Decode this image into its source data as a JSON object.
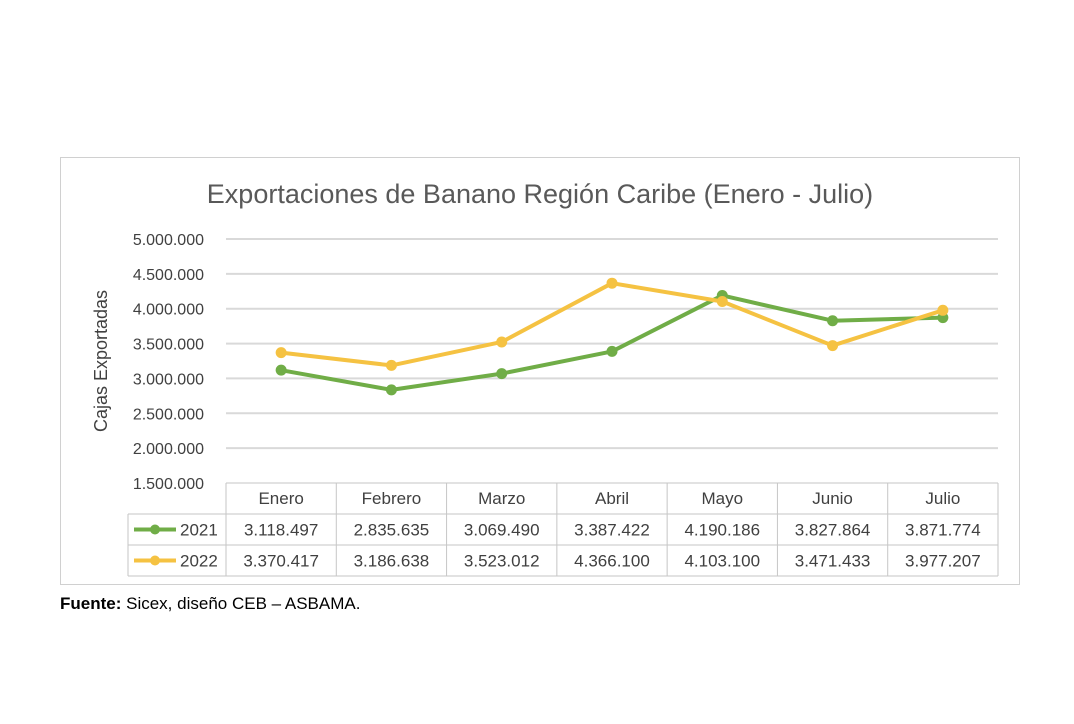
{
  "chart_data": {
    "type": "line",
    "title": "Exportaciones de Banano Región Caribe (Enero - Julio)",
    "ylabel": "Cajas Exportadas",
    "xlabel": "",
    "categories": [
      "Enero",
      "Febrero",
      "Marzo",
      "Abril",
      "Mayo",
      "Junio",
      "Julio"
    ],
    "ylim": [
      1500000,
      5000000
    ],
    "ytick_values": [
      5000000,
      4500000,
      4000000,
      3500000,
      3000000,
      2500000,
      2000000,
      1500000
    ],
    "ytick_labels": [
      "5.000.000",
      "4.500.000",
      "4.000.000",
      "3.500.000",
      "3.000.000",
      "2.500.000",
      "2.000.000",
      "1.500.000"
    ],
    "grid": true,
    "legend": "data-table",
    "series": [
      {
        "name": "2021",
        "color": "#70ad47",
        "values": [
          3118497,
          2835635,
          3069490,
          3387422,
          4190186,
          3827864,
          3871774
        ],
        "labels": [
          "3.118.497",
          "2.835.635",
          "3.069.490",
          "3.387.422",
          "4.190.186",
          "3.827.864",
          "3.871.774"
        ]
      },
      {
        "name": "2022",
        "color": "#f5c242",
        "values": [
          3370417,
          3186638,
          3523012,
          4366100,
          4103100,
          3471433,
          3977207
        ],
        "labels": [
          "3.370.417",
          "3.186.638",
          "3.523.012",
          "4.366.100",
          "4.103.100",
          "3.471.433",
          "3.977.207"
        ]
      }
    ]
  },
  "source": {
    "label": "Fuente:",
    "text": " Sicex, diseño CEB – ASBAMA."
  }
}
